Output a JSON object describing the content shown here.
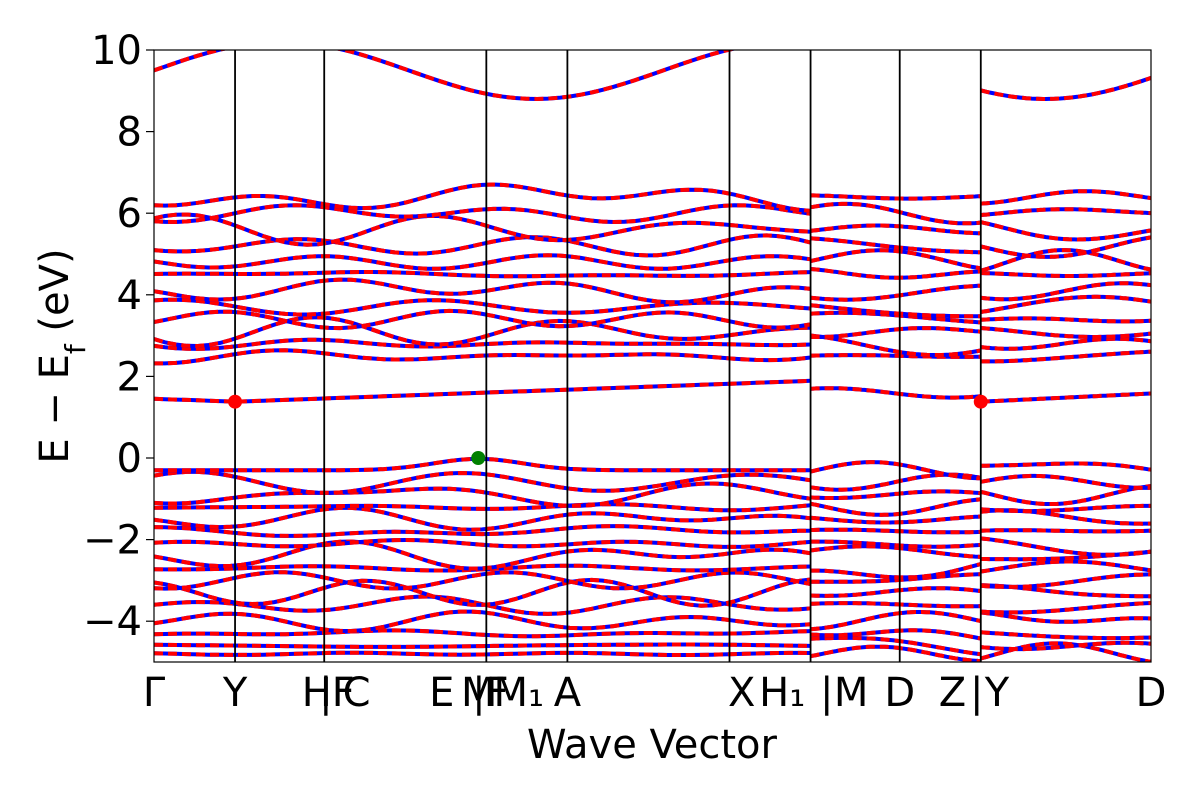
{
  "chart_data": {
    "type": "line",
    "xlabel": "Wave Vector",
    "ylabel": "E − E_f (eV)",
    "ylabel_main": "E − E",
    "ylabel_sub": "f",
    "ylabel_tail": " (eV)",
    "ylim": [
      -5,
      10
    ],
    "yticks": [
      -4,
      -2,
      0,
      2,
      4,
      6,
      8,
      10
    ],
    "ytick_labels": [
      "−4",
      "−2",
      "0",
      "2",
      "4",
      "6",
      "8",
      "10"
    ],
    "xlim": [
      0,
      12.3
    ],
    "kpoint_labels": [
      {
        "x": 0.0,
        "text": "Γ"
      },
      {
        "x": 1.0,
        "text": "Y"
      },
      {
        "x": 2.15,
        "text": "HF"
      },
      {
        "x": 2.12,
        "text": "|"
      },
      {
        "x": 2.5,
        "text": "C"
      },
      {
        "x": 3.55,
        "text": "E"
      },
      {
        "x": 4.0,
        "text": "M"
      },
      {
        "x": 4.15,
        "text": "|F"
      },
      {
        "x": 4.5,
        "text": "M₁"
      },
      {
        "x": 5.1,
        "text": "A"
      },
      {
        "x": 7.25,
        "text": "X"
      },
      {
        "x": 7.75,
        "text": "H₁"
      },
      {
        "x": 8.3,
        "text": "|"
      },
      {
        "x": 8.6,
        "text": "M"
      },
      {
        "x": 9.2,
        "text": "D"
      },
      {
        "x": 9.85,
        "text": "Z"
      },
      {
        "x": 10.15,
        "text": "|"
      },
      {
        "x": 10.4,
        "text": "Y"
      },
      {
        "x": 12.3,
        "text": "D"
      }
    ],
    "vertical_lines": [
      1.0,
      2.1,
      4.1,
      5.1,
      7.1,
      8.1,
      9.2,
      10.2
    ],
    "segment_breaks": [
      8.1,
      10.2
    ],
    "markers": [
      {
        "x": 1.0,
        "y": 1.38,
        "color": "#ff0000"
      },
      {
        "x": 10.2,
        "y": 1.38,
        "color": "#ff0000"
      },
      {
        "x": 4.0,
        "y": 0.0,
        "color": "#008000"
      }
    ],
    "series_colors": {
      "spin_up": "#0000ff",
      "spin_down": "#ff0000"
    },
    "grid": false
  }
}
